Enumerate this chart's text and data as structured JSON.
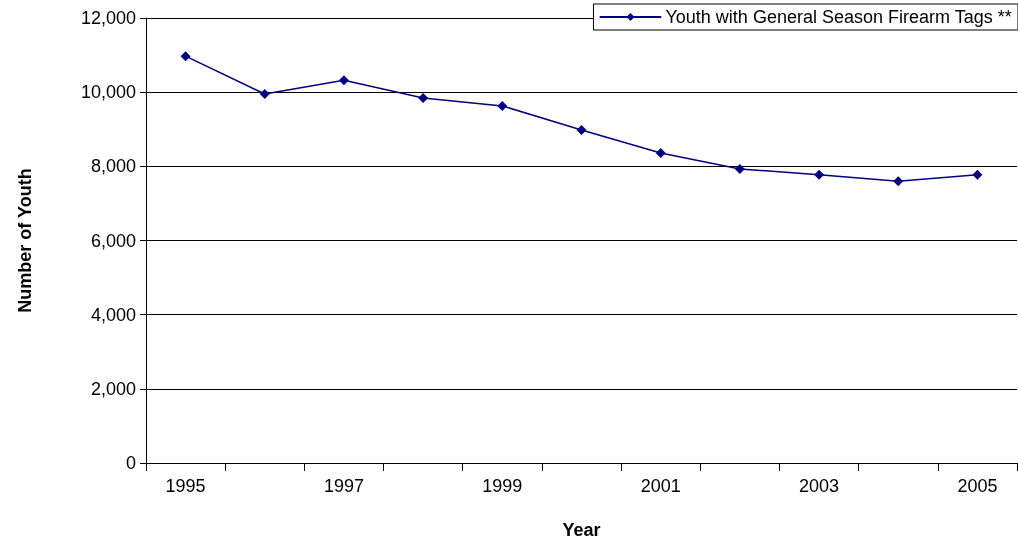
{
  "chart_data": {
    "type": "line",
    "xlabel": "Year",
    "ylabel": "Number of Youth",
    "categories": [
      "1995",
      null,
      "1997",
      null,
      "1999",
      null,
      "2001",
      null,
      "2003",
      null,
      "2005"
    ],
    "series": [
      {
        "name": "Youth with General Season Firearm Tags **",
        "color": "#000080",
        "values": [
          10970,
          9950,
          10320,
          9840,
          9630,
          8980,
          8360,
          7930,
          7770,
          7600,
          7770
        ]
      }
    ],
    "ylim": [
      0,
      12000
    ],
    "yticks": [
      0,
      {
        "value": 2000,
        "label": "2,000"
      },
      {
        "value": 4000,
        "label": "4,000"
      },
      {
        "value": 6000,
        "label": "6,000"
      },
      {
        "value": 8000,
        "label": "8,000"
      },
      {
        "value": 10000,
        "label": "10,000"
      },
      {
        "value": 12000,
        "label": "12,000"
      }
    ],
    "grid": "y",
    "legend": "top right",
    "marker": "diamond",
    "line_style": "solid"
  }
}
